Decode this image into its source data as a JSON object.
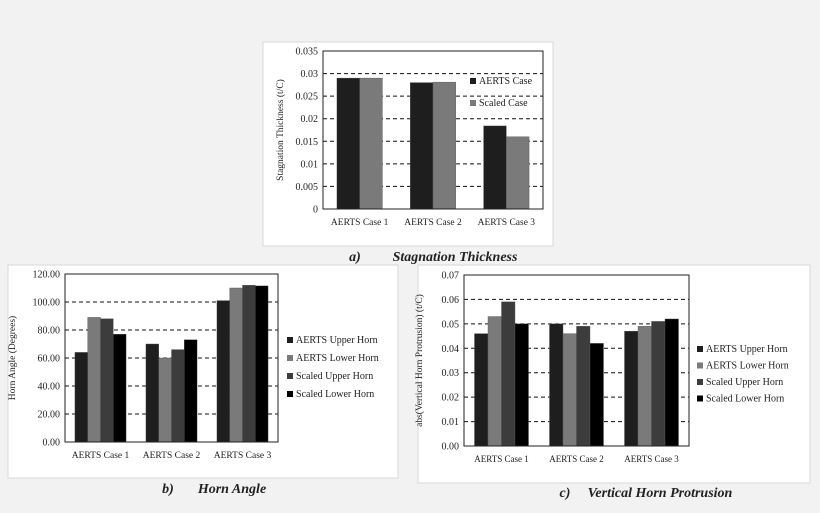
{
  "chart_data": [
    {
      "type": "bar",
      "caption_label": "a)",
      "caption": "Stagnation Thickness",
      "ylabel": "Stagnation Thickness (t/C)",
      "xlabel": "",
      "categories": [
        "AERTS Case 1",
        "AERTS Case 2",
        "AERTS Case 3"
      ],
      "ylim": [
        0,
        0.035
      ],
      "yticks": [
        "0",
        "0.005",
        "0.01",
        "0.015",
        "0.02",
        "0.025",
        "0.03",
        "0.035"
      ],
      "grid": "horizontal dashed",
      "legend_position": "right-inside",
      "series": [
        {
          "name": "AERTS Case",
          "color": "#1e1e1e",
          "values": [
            0.029,
            0.028,
            0.0184
          ]
        },
        {
          "name": "Scaled Case",
          "color": "#7a7a7a",
          "values": [
            0.029,
            0.0281,
            0.016
          ]
        }
      ]
    },
    {
      "type": "bar",
      "caption_label": "b)",
      "caption": "Horn Angle",
      "ylabel": "Horn Angle (Degrees)",
      "xlabel": "",
      "categories": [
        "AERTS Case 1",
        "AERTS Case 2",
        "AERTS Case 3"
      ],
      "ylim": [
        0,
        120
      ],
      "yticks": [
        "0.00",
        "20.00",
        "40.00",
        "60.00",
        "80.00",
        "100.00",
        "120.00"
      ],
      "grid": "horizontal dashed",
      "legend_position": "right",
      "series": [
        {
          "name": "AERTS Upper Horn",
          "color": "#1e1e1e",
          "values": [
            64,
            70,
            101
          ]
        },
        {
          "name": "AERTS Lower Horn",
          "color": "#7a7a7a",
          "values": [
            89,
            60,
            110
          ]
        },
        {
          "name": "Scaled Upper Horn",
          "color": "#3c3c3c",
          "values": [
            88,
            66,
            112
          ]
        },
        {
          "name": "Scaled Lower Horn",
          "color": "#000000",
          "values": [
            77,
            73,
            111.5
          ]
        }
      ]
    },
    {
      "type": "bar",
      "caption_label": "c)",
      "caption": "Vertical Horn Protrusion",
      "ylabel": "abs(Vertical Horn Protrusion) (t/C)",
      "xlabel": "",
      "categories": [
        "AERTS Case 1",
        "AERTS Case 2",
        "AERTS Case 3"
      ],
      "ylim": [
        0,
        0.07
      ],
      "yticks": [
        "0.00",
        "0.01",
        "0.02",
        "0.03",
        "0.04",
        "0.05",
        "0.06",
        "0.07"
      ],
      "grid": "horizontal dashed",
      "legend_position": "right",
      "series": [
        {
          "name": "AERTS Upper Horn",
          "color": "#1e1e1e",
          "values": [
            0.046,
            0.05,
            0.047
          ]
        },
        {
          "name": "AERTS Lower Horn",
          "color": "#7a7a7a",
          "values": [
            0.053,
            0.046,
            0.049
          ]
        },
        {
          "name": "Scaled Upper Horn",
          "color": "#3c3c3c",
          "values": [
            0.059,
            0.049,
            0.051
          ]
        },
        {
          "name": "Scaled Lower Horn",
          "color": "#000000",
          "values": [
            0.05,
            0.042,
            0.052
          ]
        }
      ]
    }
  ]
}
